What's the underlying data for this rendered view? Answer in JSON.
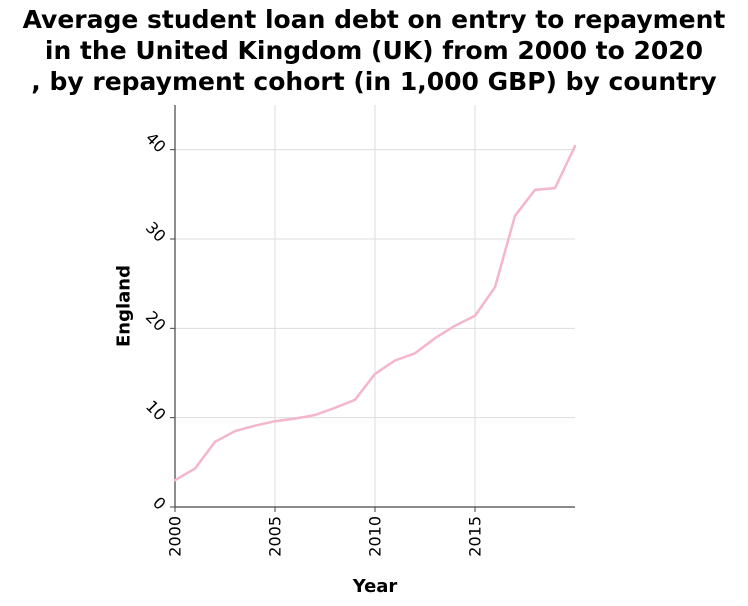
{
  "chart_data": {
    "type": "line",
    "title_lines": [
      "Average student loan debt on entry to repayment",
      "in the United Kingdom (UK) from 2000 to 2020",
      ", by repayment cohort (in 1,000 GBP) by country"
    ],
    "xlabel": "Year",
    "ylabel": "England",
    "xlim": [
      2000,
      2020
    ],
    "ylim": [
      0,
      45
    ],
    "x_ticks": [
      2000,
      2005,
      2010,
      2015
    ],
    "y_ticks": [
      0,
      10,
      20,
      30,
      40
    ],
    "grid": true,
    "legend": "none",
    "line_color": "#f4b6c9",
    "x": [
      2000,
      2001,
      2002,
      2003,
      2004,
      2005,
      2006,
      2007,
      2008,
      2009,
      2010,
      2011,
      2012,
      2013,
      2014,
      2015,
      2016,
      2017,
      2018,
      2019,
      2020
    ],
    "values": [
      3.0,
      4.3,
      7.3,
      8.5,
      9.1,
      9.6,
      9.9,
      10.3,
      11.1,
      12.0,
      14.9,
      16.4,
      17.2,
      18.9,
      20.3,
      21.4,
      24.6,
      32.6,
      35.5,
      35.7,
      40.4
    ]
  }
}
